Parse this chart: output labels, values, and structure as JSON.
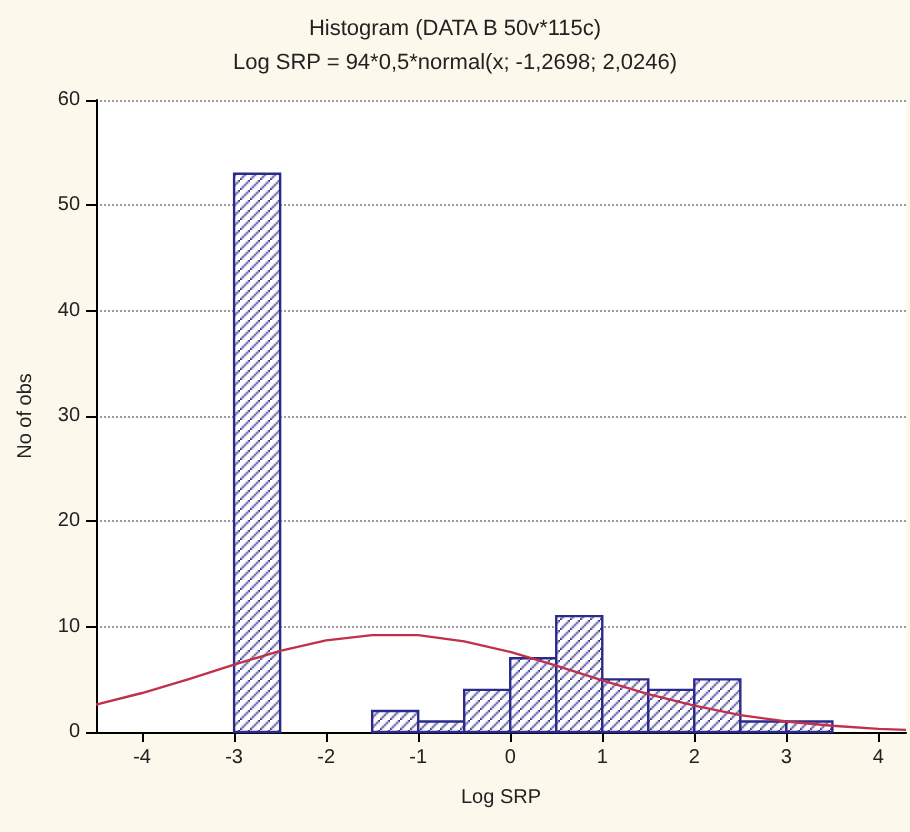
{
  "chart_data": {
    "type": "histogram",
    "title": "Histogram (DATA B 50v*115c)",
    "subtitle": "Log SRP = 94*0,5*normal(x; -1,2698; 2,0246)",
    "xlabel": "Log SRP",
    "ylabel": "No of obs",
    "series": [
      {
        "color": "#2a2a8c",
        "bins": [
          -3,
          -2.5,
          -2,
          -1.5,
          -1,
          -0.5,
          0,
          0.5,
          1,
          1.5,
          2,
          2.5,
          3,
          3.5
        ],
        "values": [
          53,
          0,
          0,
          2,
          1,
          4,
          7,
          11,
          5,
          4,
          5,
          1,
          1
        ]
      },
      {
        "type": "line",
        "color": "#c0304a",
        "x": [
          -4.5,
          -4,
          -3.5,
          -3,
          -2.5,
          -2,
          -1.5,
          -1,
          -0.5,
          0,
          0.5,
          1,
          1.5,
          2,
          2.5,
          3,
          3.5,
          4,
          4.3
        ],
        "values": [
          2.6,
          3.7,
          5.0,
          6.4,
          7.7,
          8.7,
          9.2,
          9.2,
          8.6,
          7.6,
          6.3,
          4.9,
          3.6,
          2.5,
          1.6,
          1.0,
          0.6,
          0.3,
          0.2
        ]
      }
    ],
    "xlim": [
      -4.5,
      4.3
    ],
    "xticks": [
      -4,
      -3,
      -2,
      -1,
      0,
      1,
      2,
      3,
      4
    ],
    "ylim": [
      0,
      60
    ],
    "yticks": [
      0,
      10,
      20,
      30,
      40,
      50,
      60
    ],
    "grid": "y"
  }
}
